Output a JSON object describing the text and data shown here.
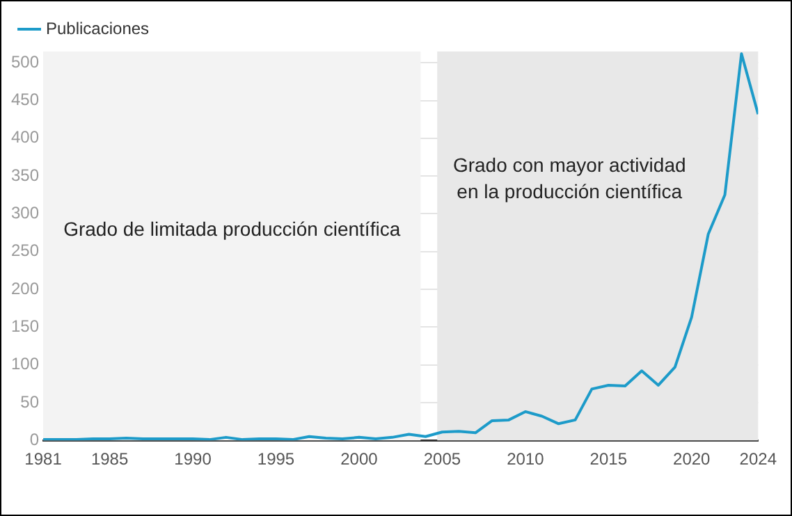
{
  "chart_data": {
    "type": "line",
    "x": [
      1981,
      1982,
      1983,
      1984,
      1985,
      1986,
      1987,
      1988,
      1989,
      1990,
      1991,
      1992,
      1993,
      1994,
      1995,
      1996,
      1997,
      1998,
      1999,
      2000,
      2001,
      2002,
      2003,
      2004,
      2005,
      2006,
      2007,
      2008,
      2009,
      2010,
      2011,
      2012,
      2013,
      2014,
      2015,
      2016,
      2017,
      2018,
      2019,
      2020,
      2021,
      2022,
      2023,
      2024
    ],
    "series": [
      {
        "name": "Publicaciones",
        "color": "#1d9bc9",
        "values": [
          1,
          1,
          1,
          2,
          2,
          3,
          2,
          2,
          2,
          2,
          1,
          4,
          1,
          2,
          2,
          1,
          5,
          3,
          2,
          4,
          2,
          4,
          8,
          5,
          11,
          12,
          10,
          26,
          27,
          38,
          32,
          22,
          27,
          68,
          73,
          72,
          92,
          73,
          97,
          163,
          273,
          325,
          512,
          432
        ]
      }
    ],
    "xlim": [
      1981,
      2024
    ],
    "xticks": [
      1981,
      1985,
      1990,
      1995,
      2000,
      2005,
      2010,
      2015,
      2020,
      2024
    ],
    "ylim": [
      0,
      515
    ],
    "yticks": [
      0,
      50,
      100,
      150,
      200,
      250,
      300,
      350,
      400,
      450,
      500
    ],
    "grid": "y",
    "legend": "top left",
    "marker": "none",
    "line_style": "solid",
    "bands": [
      {
        "axis": "x",
        "from": 1981,
        "to": 2003.7,
        "label": "Grado de limitada producción científica",
        "color": "#f3f3f3"
      },
      {
        "axis": "x",
        "from": 2004.7,
        "to": 2024,
        "label": "Grado con mayor actividad en la producción científica",
        "color": "#e8e8e8"
      }
    ]
  }
}
